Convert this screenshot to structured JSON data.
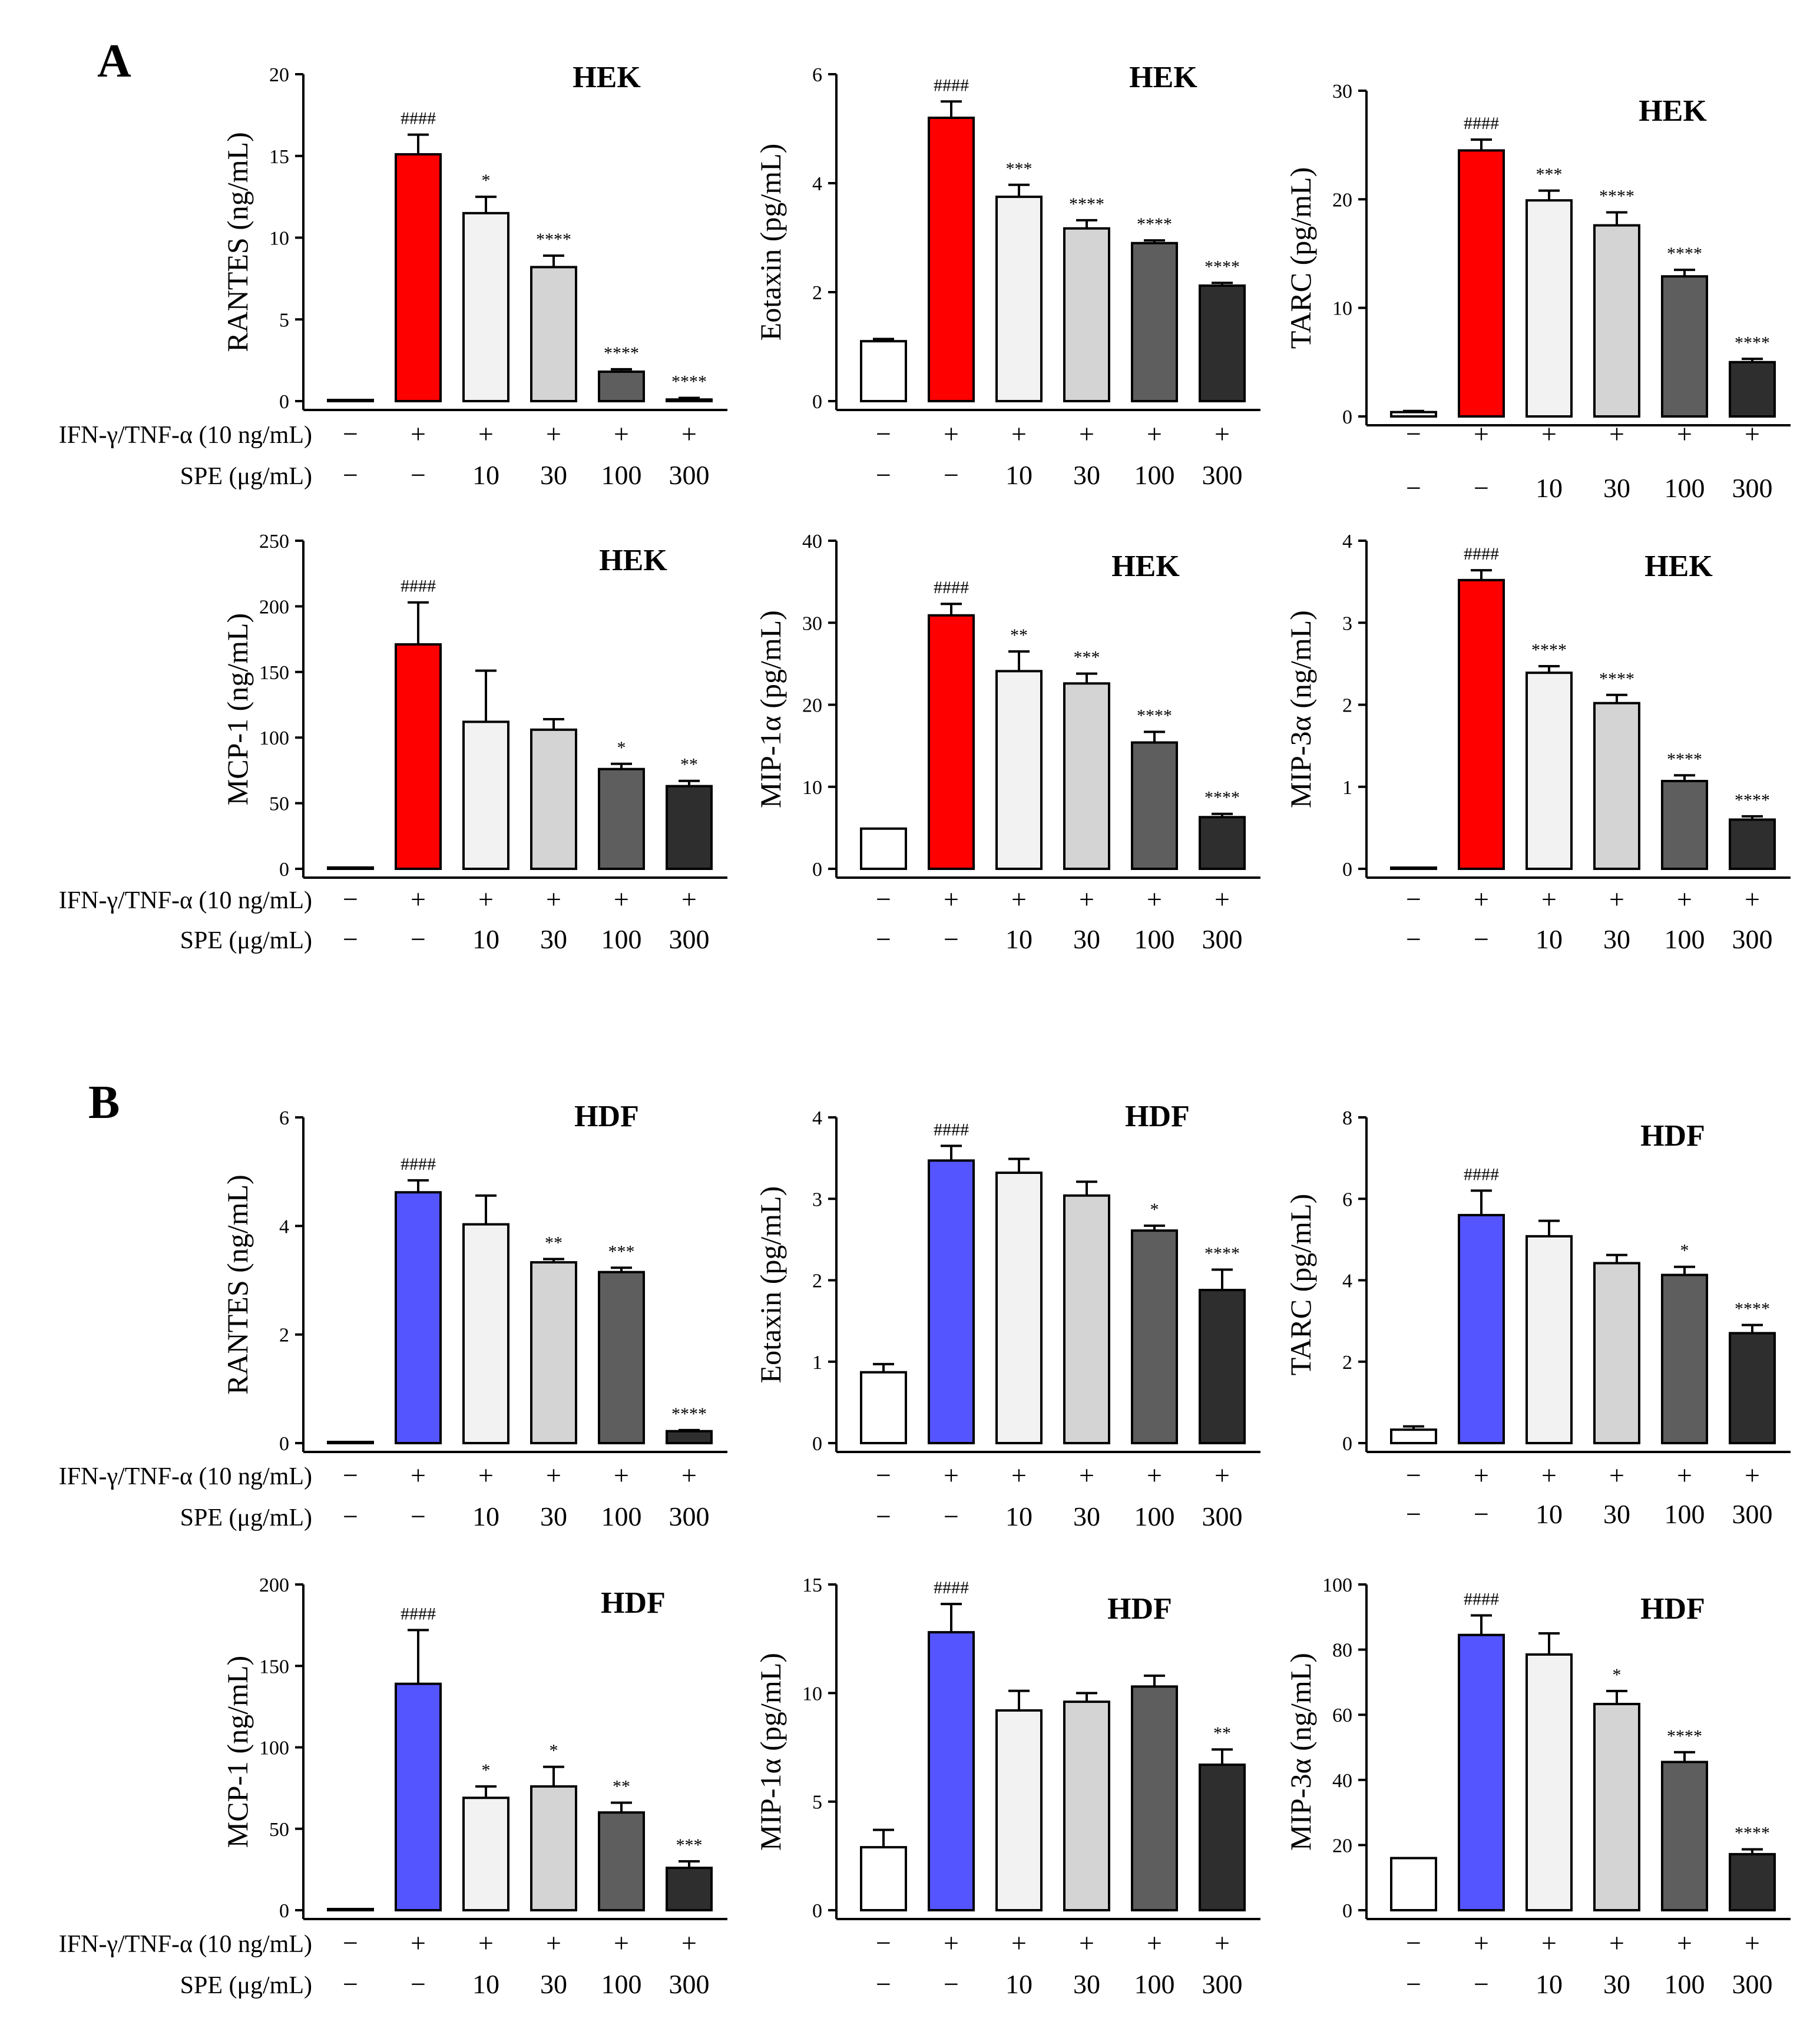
{
  "figure": {
    "panels": [
      {
        "label": "A",
        "cell_label": "HEK",
        "bar_color": "#ff0000"
      },
      {
        "label": "B",
        "cell_label": "HDF",
        "bar_color": "#5555ff"
      }
    ],
    "row_labels": {
      "ifn": "IFN-γ/TNF-α (10 ng/mL)",
      "spe": "SPE (μg/mL)"
    },
    "treatment_row": [
      "−",
      "+",
      "+",
      "+",
      "+",
      "+"
    ],
    "dose_row": [
      "−",
      "−",
      "10",
      "30",
      "100",
      "300"
    ],
    "bar_fills": [
      "#ffffff",
      "ACCENT",
      "#f2f2f2",
      "#d4d4d4",
      "#5e5e5e",
      "#2e2e2e"
    ]
  },
  "chart_data": [
    {
      "type": "bar",
      "panel": "A",
      "cell": "HEK",
      "ylabel": "RANTES (ng/mL)",
      "ylim": [
        0,
        20
      ],
      "yticks": [
        0,
        5,
        10,
        15,
        20
      ],
      "categories": [
        "control",
        "IFN-γ/TNF-α",
        "SPE 10",
        "SPE 30",
        "SPE 100",
        "SPE 300"
      ],
      "values": [
        0,
        15.1,
        11.5,
        8.2,
        1.8,
        0.1
      ],
      "errors": [
        0,
        1.2,
        1.0,
        0.7,
        0.15,
        0.1
      ],
      "annotations": [
        "",
        "####",
        "*",
        "****",
        "****",
        "****"
      ]
    },
    {
      "type": "bar",
      "panel": "A",
      "cell": "HEK",
      "ylabel": "Eotaxin (pg/mL)",
      "ylim": [
        0,
        6
      ],
      "yticks": [
        0,
        2,
        4,
        6
      ],
      "categories": [
        "control",
        "IFN-γ/TNF-α",
        "SPE 10",
        "SPE 30",
        "SPE 100",
        "SPE 300"
      ],
      "values": [
        1.1,
        5.2,
        3.75,
        3.17,
        2.9,
        2.12
      ],
      "errors": [
        0.04,
        0.3,
        0.22,
        0.15,
        0.05,
        0.05
      ],
      "annotations": [
        "",
        "####",
        "***",
        "****",
        "****",
        "****"
      ]
    },
    {
      "type": "bar",
      "panel": "A",
      "cell": "HEK",
      "ylabel": "TARC (pg/mL)",
      "ylim": [
        0,
        30
      ],
      "yticks": [
        0,
        10,
        20,
        30
      ],
      "categories": [
        "control",
        "IFN-γ/TNF-α",
        "SPE 10",
        "SPE 30",
        "SPE 100",
        "SPE 300"
      ],
      "values": [
        0.4,
        24.5,
        19.9,
        17.6,
        12.9,
        5.0
      ],
      "errors": [
        0.1,
        1.0,
        0.9,
        1.2,
        0.6,
        0.3
      ],
      "annotations": [
        "",
        "####",
        "***",
        "****",
        "****",
        "****"
      ]
    },
    {
      "type": "bar",
      "panel": "A",
      "cell": "HEK",
      "ylabel": "MCP-1 (ng/mL)",
      "ylim": [
        0,
        250
      ],
      "yticks": [
        0,
        50,
        100,
        150,
        200,
        250
      ],
      "categories": [
        "control",
        "IFN-γ/TNF-α",
        "SPE 10",
        "SPE 30",
        "SPE 100",
        "SPE 300"
      ],
      "values": [
        1,
        171,
        112,
        106,
        76,
        63
      ],
      "errors": [
        0,
        32,
        39,
        8,
        4,
        4
      ],
      "annotations": [
        "",
        "####",
        "",
        "",
        "*",
        "**"
      ]
    },
    {
      "type": "bar",
      "panel": "A",
      "cell": "HEK",
      "ylabel": "MIP-1α (pg/mL)",
      "ylim": [
        0,
        40
      ],
      "yticks": [
        0,
        10,
        20,
        30,
        40
      ],
      "categories": [
        "control",
        "IFN-γ/TNF-α",
        "SPE 10",
        "SPE 30",
        "SPE 100",
        "SPE 300"
      ],
      "values": [
        4.9,
        30.9,
        24.1,
        22.6,
        15.4,
        6.3
      ],
      "errors": [
        0,
        1.4,
        2.4,
        1.2,
        1.3,
        0.4
      ],
      "annotations": [
        "",
        "####",
        "**",
        "***",
        "****",
        "****"
      ]
    },
    {
      "type": "bar",
      "panel": "A",
      "cell": "HEK",
      "ylabel": "MIP-3α (ng/mL)",
      "ylim": [
        0,
        4
      ],
      "yticks": [
        0,
        1,
        2,
        3,
        4
      ],
      "categories": [
        "control",
        "IFN-γ/TNF-α",
        "SPE 10",
        "SPE 30",
        "SPE 100",
        "SPE 300"
      ],
      "values": [
        0.0,
        3.52,
        2.39,
        2.02,
        1.07,
        0.6
      ],
      "errors": [
        0,
        0.12,
        0.08,
        0.1,
        0.07,
        0.04
      ],
      "annotations": [
        "",
        "####",
        "****",
        "****",
        "****",
        "****"
      ]
    },
    {
      "type": "bar",
      "panel": "B",
      "cell": "HDF",
      "ylabel": "RANTES (ng/mL)",
      "ylim": [
        0,
        6
      ],
      "yticks": [
        0,
        2,
        4,
        6
      ],
      "categories": [
        "control",
        "IFN-γ/TNF-α",
        "SPE 10",
        "SPE 30",
        "SPE 100",
        "SPE 300"
      ],
      "values": [
        0.0,
        4.62,
        4.03,
        3.33,
        3.15,
        0.22
      ],
      "errors": [
        0,
        0.22,
        0.53,
        0.06,
        0.08,
        0.02
      ],
      "annotations": [
        "",
        "####",
        "",
        "**",
        "***",
        "****"
      ]
    },
    {
      "type": "bar",
      "panel": "B",
      "cell": "HDF",
      "ylabel": "Eotaxin (pg/mL)",
      "ylim": [
        0,
        4
      ],
      "yticks": [
        0,
        1,
        2,
        3,
        4
      ],
      "categories": [
        "control",
        "IFN-γ/TNF-α",
        "SPE 10",
        "SPE 30",
        "SPE 100",
        "SPE 300"
      ],
      "values": [
        0.87,
        3.47,
        3.32,
        3.04,
        2.61,
        1.88
      ],
      "errors": [
        0.1,
        0.18,
        0.17,
        0.17,
        0.06,
        0.25
      ],
      "annotations": [
        "",
        "####",
        "",
        "",
        "*",
        "****"
      ]
    },
    {
      "type": "bar",
      "panel": "B",
      "cell": "HDF",
      "ylabel": "TARC (pg/mL)",
      "ylim": [
        0,
        8
      ],
      "yticks": [
        0,
        2,
        4,
        6,
        8
      ],
      "categories": [
        "control",
        "IFN-γ/TNF-α",
        "SPE 10",
        "SPE 30",
        "SPE 100",
        "SPE 300"
      ],
      "values": [
        0.33,
        5.6,
        5.08,
        4.42,
        4.13,
        2.7
      ],
      "errors": [
        0.08,
        0.6,
        0.38,
        0.2,
        0.2,
        0.2
      ],
      "annotations": [
        "",
        "####",
        "",
        "",
        "*",
        "****"
      ]
    },
    {
      "type": "bar",
      "panel": "B",
      "cell": "HDF",
      "ylabel": "MCP-1 (ng/mL)",
      "ylim": [
        0,
        200
      ],
      "yticks": [
        0,
        50,
        100,
        150,
        200
      ],
      "categories": [
        "control",
        "IFN-γ/TNF-α",
        "SPE 10",
        "SPE 30",
        "SPE 100",
        "SPE 300"
      ],
      "values": [
        0,
        139,
        69,
        76,
        60,
        26
      ],
      "errors": [
        0,
        33,
        7,
        12,
        6,
        4
      ],
      "annotations": [
        "",
        "####",
        "*",
        "*",
        "**",
        "***"
      ]
    },
    {
      "type": "bar",
      "panel": "B",
      "cell": "HDF",
      "ylabel": "MIP-1α (pg/mL)",
      "ylim": [
        0,
        15
      ],
      "yticks": [
        0,
        5,
        10,
        15
      ],
      "categories": [
        "control",
        "IFN-γ/TNF-α",
        "SPE 10",
        "SPE 30",
        "SPE 100",
        "SPE 300"
      ],
      "values": [
        2.9,
        12.8,
        9.2,
        9.6,
        10.3,
        6.7
      ],
      "errors": [
        0.8,
        1.3,
        0.9,
        0.4,
        0.5,
        0.7
      ],
      "annotations": [
        "",
        "####",
        "",
        "",
        "",
        "**"
      ]
    },
    {
      "type": "bar",
      "panel": "B",
      "cell": "HDF",
      "ylabel": "MIP-3α (ng/mL)",
      "ylim": [
        0,
        100
      ],
      "yticks": [
        0,
        20,
        40,
        60,
        80,
        100
      ],
      "categories": [
        "control",
        "IFN-γ/TNF-α",
        "SPE 10",
        "SPE 30",
        "SPE 100",
        "SPE 300"
      ],
      "values": [
        16,
        84.5,
        78.5,
        63.3,
        45.5,
        17.2
      ],
      "errors": [
        0,
        6,
        6.5,
        4,
        3,
        1.5
      ],
      "annotations": [
        "",
        "####",
        "",
        "*",
        "****",
        "****"
      ]
    }
  ]
}
